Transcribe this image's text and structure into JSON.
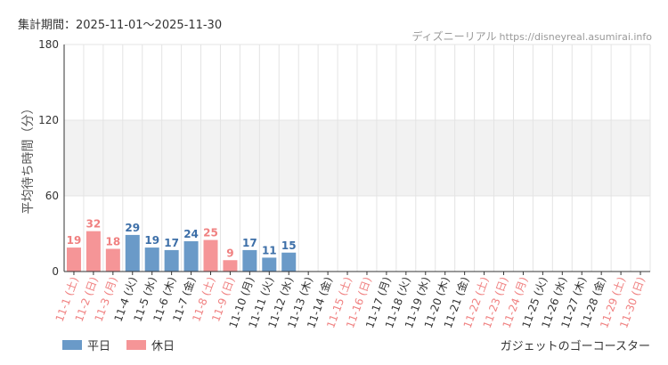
{
  "header": {
    "period": "集計期間：2025-11-01～2025-11-30",
    "source_name": "ディズニーリアル",
    "source_url": "https://disneyreal.asumirai.info"
  },
  "legend": {
    "weekday": "平日",
    "holiday": "休日"
  },
  "attraction": "ガジェットのゴーコースター",
  "colors": {
    "weekday_bar": "#6a9ac8",
    "holiday_bar": "#f59597",
    "weekday_text": "#3d6fa8",
    "holiday_text": "#f08080",
    "label_weekday": "#333333",
    "label_holiday": "#f08080",
    "band": "#f2f2f2",
    "grid": "#e4e4e4"
  },
  "chart_data": {
    "type": "bar",
    "ylabel": "平均待ち時間（分）",
    "ylim": [
      0,
      180
    ],
    "yticks": [
      0,
      60,
      120,
      180
    ],
    "shaded_band": [
      60,
      120
    ],
    "categories": [
      {
        "label": "11-1 (土)",
        "value": 19,
        "holiday": true
      },
      {
        "label": "11-2 (日)",
        "value": 32,
        "holiday": true
      },
      {
        "label": "11-3 (月)",
        "value": 18,
        "holiday": true
      },
      {
        "label": "11-4 (火)",
        "value": 29,
        "holiday": false
      },
      {
        "label": "11-5 (水)",
        "value": 19,
        "holiday": false
      },
      {
        "label": "11-6 (木)",
        "value": 17,
        "holiday": false
      },
      {
        "label": "11-7 (金)",
        "value": 24,
        "holiday": false
      },
      {
        "label": "11-8 (土)",
        "value": 25,
        "holiday": true
      },
      {
        "label": "11-9 (日)",
        "value": 9,
        "holiday": true
      },
      {
        "label": "11-10 (月)",
        "value": 17,
        "holiday": false
      },
      {
        "label": "11-11 (火)",
        "value": 11,
        "holiday": false
      },
      {
        "label": "11-12 (水)",
        "value": 15,
        "holiday": false
      },
      {
        "label": "11-13 (木)",
        "value": null,
        "holiday": false
      },
      {
        "label": "11-14 (金)",
        "value": null,
        "holiday": false
      },
      {
        "label": "11-15 (土)",
        "value": null,
        "holiday": true
      },
      {
        "label": "11-16 (日)",
        "value": null,
        "holiday": true
      },
      {
        "label": "11-17 (月)",
        "value": null,
        "holiday": false
      },
      {
        "label": "11-18 (火)",
        "value": null,
        "holiday": false
      },
      {
        "label": "11-19 (水)",
        "value": null,
        "holiday": false
      },
      {
        "label": "11-20 (木)",
        "value": null,
        "holiday": false
      },
      {
        "label": "11-21 (金)",
        "value": null,
        "holiday": false
      },
      {
        "label": "11-22 (土)",
        "value": null,
        "holiday": true
      },
      {
        "label": "11-23 (日)",
        "value": null,
        "holiday": true
      },
      {
        "label": "11-24 (月)",
        "value": null,
        "holiday": true
      },
      {
        "label": "11-25 (火)",
        "value": null,
        "holiday": false
      },
      {
        "label": "11-26 (水)",
        "value": null,
        "holiday": false
      },
      {
        "label": "11-27 (木)",
        "value": null,
        "holiday": false
      },
      {
        "label": "11-28 (金)",
        "value": null,
        "holiday": false
      },
      {
        "label": "11-29 (土)",
        "value": null,
        "holiday": true
      },
      {
        "label": "11-30 (日)",
        "value": null,
        "holiday": true
      }
    ]
  }
}
